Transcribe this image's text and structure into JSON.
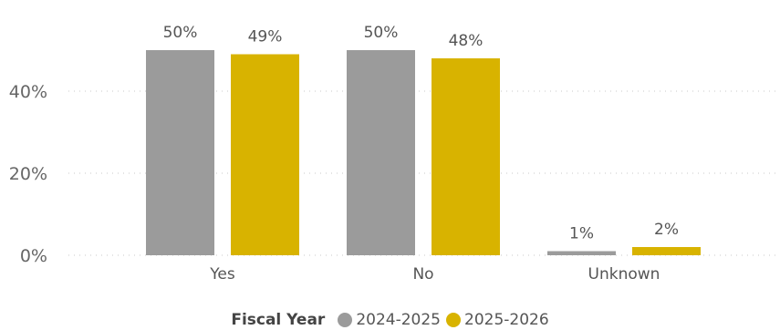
{
  "chart_data": {
    "type": "bar",
    "categories": [
      "Yes",
      "No",
      "Unknown"
    ],
    "series": [
      {
        "name": "2024-2025",
        "color": "#9b9b9b",
        "values": [
          50,
          50,
          1
        ],
        "labels": [
          "50%",
          "50%",
          "1%"
        ]
      },
      {
        "name": "2025-2026",
        "color": "#d8b300",
        "values": [
          49,
          48,
          2
        ],
        "labels": [
          "49%",
          "48%",
          "2%"
        ]
      }
    ],
    "yticks": [
      {
        "value": 0,
        "label": "0%"
      },
      {
        "value": 20,
        "label": "20%"
      },
      {
        "value": 40,
        "label": "40%"
      }
    ],
    "ylim": [
      0,
      50
    ],
    "legend_title": "Fiscal Year",
    "legend_position": "bottom-center",
    "grid": true
  }
}
